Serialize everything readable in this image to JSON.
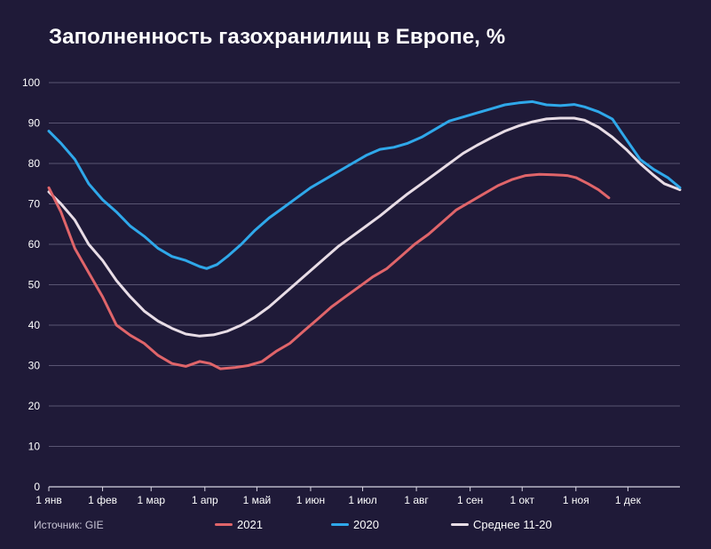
{
  "chart_data": {
    "type": "line",
    "title": "Заполненность газохранилищ в Европе, %",
    "ylim": [
      0,
      100
    ],
    "y_ticks": [
      0,
      10,
      20,
      30,
      40,
      50,
      60,
      70,
      80,
      90,
      100
    ],
    "x_ticks": [
      {
        "label": "1 янв",
        "day": 1
      },
      {
        "label": "1 фев",
        "day": 32
      },
      {
        "label": "1 мар",
        "day": 60
      },
      {
        "label": "1 апр",
        "day": 91
      },
      {
        "label": "1 май",
        "day": 121
      },
      {
        "label": "1 июн",
        "day": 152
      },
      {
        "label": "1 июл",
        "day": 182
      },
      {
        "label": "1 авг",
        "day": 213
      },
      {
        "label": "1 сен",
        "day": 244
      },
      {
        "label": "1 окт",
        "day": 274
      },
      {
        "label": "1 ноя",
        "day": 305
      },
      {
        "label": "1 дек",
        "day": 335
      }
    ],
    "xlim": [
      1,
      365
    ],
    "grid": true,
    "legend_position": "bottom",
    "series": [
      {
        "name": "2021",
        "color": "#e0656a",
        "points": [
          [
            1,
            74
          ],
          [
            8,
            68
          ],
          [
            16,
            59
          ],
          [
            24,
            53
          ],
          [
            32,
            47
          ],
          [
            40,
            40
          ],
          [
            48,
            37.5
          ],
          [
            56,
            35.5
          ],
          [
            64,
            32.5
          ],
          [
            72,
            30.5
          ],
          [
            80,
            29.8
          ],
          [
            88,
            31
          ],
          [
            94,
            30.5
          ],
          [
            100,
            29.2
          ],
          [
            108,
            29.5
          ],
          [
            116,
            30
          ],
          [
            124,
            31
          ],
          [
            132,
            33.5
          ],
          [
            140,
            35.5
          ],
          [
            148,
            38.5
          ],
          [
            156,
            41.5
          ],
          [
            164,
            44.5
          ],
          [
            172,
            47
          ],
          [
            180,
            49.5
          ],
          [
            188,
            52
          ],
          [
            196,
            54
          ],
          [
            204,
            57
          ],
          [
            212,
            60
          ],
          [
            220,
            62.5
          ],
          [
            228,
            65.5
          ],
          [
            236,
            68.5
          ],
          [
            244,
            70.5
          ],
          [
            252,
            72.5
          ],
          [
            260,
            74.5
          ],
          [
            268,
            76
          ],
          [
            276,
            77
          ],
          [
            284,
            77.3
          ],
          [
            292,
            77.2
          ],
          [
            300,
            77
          ],
          [
            305,
            76.5
          ],
          [
            312,
            75
          ],
          [
            318,
            73.5
          ],
          [
            324,
            71.5
          ]
        ]
      },
      {
        "name": "2020",
        "color": "#2fa8ea",
        "points": [
          [
            1,
            88
          ],
          [
            8,
            85
          ],
          [
            16,
            81
          ],
          [
            24,
            75
          ],
          [
            32,
            71
          ],
          [
            40,
            68
          ],
          [
            48,
            64.5
          ],
          [
            56,
            62
          ],
          [
            64,
            59
          ],
          [
            72,
            57
          ],
          [
            80,
            56
          ],
          [
            88,
            54.5
          ],
          [
            92,
            54
          ],
          [
            98,
            55
          ],
          [
            104,
            57
          ],
          [
            112,
            60
          ],
          [
            120,
            63.5
          ],
          [
            128,
            66.5
          ],
          [
            136,
            69
          ],
          [
            144,
            71.5
          ],
          [
            152,
            74
          ],
          [
            160,
            76
          ],
          [
            168,
            78
          ],
          [
            176,
            80
          ],
          [
            184,
            82
          ],
          [
            192,
            83.5
          ],
          [
            200,
            84
          ],
          [
            208,
            85
          ],
          [
            216,
            86.5
          ],
          [
            224,
            88.5
          ],
          [
            232,
            90.5
          ],
          [
            240,
            91.5
          ],
          [
            248,
            92.5
          ],
          [
            256,
            93.5
          ],
          [
            264,
            94.5
          ],
          [
            272,
            95
          ],
          [
            280,
            95.3
          ],
          [
            288,
            94.5
          ],
          [
            296,
            94.3
          ],
          [
            304,
            94.6
          ],
          [
            310,
            94
          ],
          [
            318,
            92.8
          ],
          [
            326,
            91
          ],
          [
            334,
            86
          ],
          [
            342,
            81
          ],
          [
            350,
            78.5
          ],
          [
            358,
            76.5
          ],
          [
            365,
            74
          ]
        ]
      },
      {
        "name": "Среднее 11-20",
        "color": "#e8dde6",
        "points": [
          [
            1,
            73
          ],
          [
            8,
            70
          ],
          [
            16,
            66
          ],
          [
            24,
            60
          ],
          [
            32,
            56
          ],
          [
            40,
            51
          ],
          [
            48,
            47
          ],
          [
            56,
            43.5
          ],
          [
            64,
            41
          ],
          [
            72,
            39.2
          ],
          [
            80,
            37.8
          ],
          [
            88,
            37.3
          ],
          [
            96,
            37.6
          ],
          [
            104,
            38.5
          ],
          [
            112,
            40
          ],
          [
            120,
            42
          ],
          [
            128,
            44.5
          ],
          [
            136,
            47.5
          ],
          [
            144,
            50.5
          ],
          [
            152,
            53.5
          ],
          [
            160,
            56.5
          ],
          [
            168,
            59.5
          ],
          [
            176,
            62
          ],
          [
            184,
            64.5
          ],
          [
            192,
            67
          ],
          [
            200,
            69.8
          ],
          [
            208,
            72.5
          ],
          [
            216,
            75
          ],
          [
            224,
            77.5
          ],
          [
            232,
            80
          ],
          [
            240,
            82.5
          ],
          [
            248,
            84.5
          ],
          [
            256,
            86.3
          ],
          [
            264,
            88
          ],
          [
            272,
            89.3
          ],
          [
            280,
            90.3
          ],
          [
            288,
            91
          ],
          [
            296,
            91.2
          ],
          [
            304,
            91.2
          ],
          [
            310,
            90.7
          ],
          [
            318,
            89
          ],
          [
            326,
            86.5
          ],
          [
            334,
            83.5
          ],
          [
            342,
            80
          ],
          [
            350,
            77
          ],
          [
            356,
            75
          ],
          [
            365,
            73.5
          ]
        ]
      }
    ]
  },
  "source_text": "Источник: GIE"
}
